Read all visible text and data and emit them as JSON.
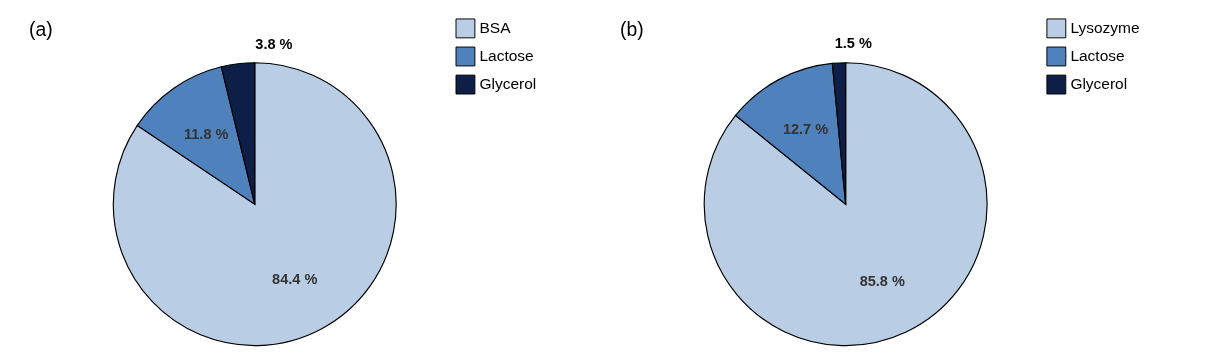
{
  "chart_data": [
    {
      "type": "pie",
      "title": "(a)",
      "categories": [
        "BSA",
        "Lactose",
        "Glycerol"
      ],
      "values": [
        84.4,
        11.8,
        3.8
      ],
      "colors": [
        "#b9cde5",
        "#4f81bd",
        "#0e1f47"
      ],
      "value_labels": [
        "84.4 %",
        "11.8 %",
        "3.8 %"
      ],
      "legend": "top right"
    },
    {
      "type": "pie",
      "title": "(b)",
      "categories": [
        "Lysozyme",
        "Lactose",
        "Glycerol"
      ],
      "values": [
        85.8,
        12.7,
        1.5
      ],
      "colors": [
        "#b9cde5",
        "#4f81bd",
        "#0e1f47"
      ],
      "value_labels": [
        "85.8 %",
        "12.7 %",
        "1.5 %"
      ],
      "legend": "top right"
    }
  ]
}
